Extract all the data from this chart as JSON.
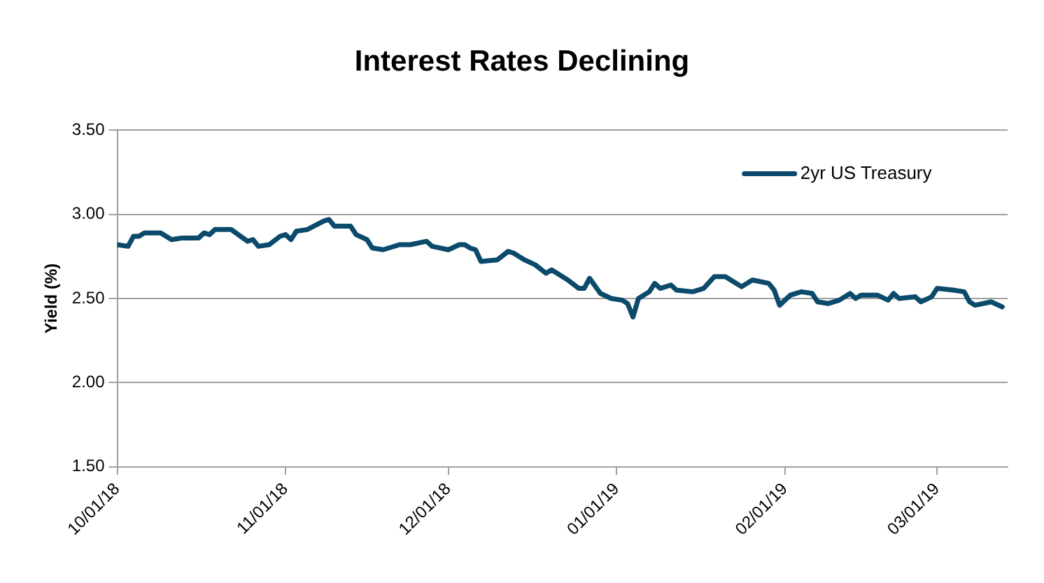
{
  "chart_data": {
    "type": "line",
    "title": "Interest Rates Declining",
    "ylabel": "Yield (%)",
    "x": [
      "2018-10-01",
      "2018-10-03",
      "2018-10-04",
      "2018-10-05",
      "2018-10-06",
      "2018-10-09",
      "2018-10-11",
      "2018-10-13",
      "2018-10-16",
      "2018-10-17",
      "2018-10-18",
      "2018-10-19",
      "2018-10-22",
      "2018-10-25",
      "2018-10-26",
      "2018-10-27",
      "2018-10-29",
      "2018-10-31",
      "2018-11-01",
      "2018-11-02",
      "2018-11-03",
      "2018-11-05",
      "2018-11-08",
      "2018-11-09",
      "2018-11-10",
      "2018-11-13",
      "2018-11-14",
      "2018-11-16",
      "2018-11-17",
      "2018-11-19",
      "2018-11-22",
      "2018-11-24",
      "2018-11-27",
      "2018-11-28",
      "2018-12-01",
      "2018-12-03",
      "2018-12-04",
      "2018-12-05",
      "2018-12-06",
      "2018-12-07",
      "2018-12-10",
      "2018-12-12",
      "2018-12-13",
      "2018-12-15",
      "2018-12-17",
      "2018-12-19",
      "2018-12-20",
      "2018-12-23",
      "2018-12-25",
      "2018-12-26",
      "2018-12-27",
      "2018-12-29",
      "2018-12-31",
      "2019-01-02",
      "2019-01-03",
      "2019-01-04",
      "2019-01-05",
      "2019-01-07",
      "2019-01-08",
      "2019-01-09",
      "2019-01-11",
      "2019-01-12",
      "2019-01-15",
      "2019-01-17",
      "2019-01-19",
      "2019-01-21",
      "2019-01-23",
      "2019-01-24",
      "2019-01-26",
      "2019-01-29",
      "2019-01-30",
      "2019-01-31",
      "2019-02-02",
      "2019-02-04",
      "2019-02-06",
      "2019-02-07",
      "2019-02-09",
      "2019-02-11",
      "2019-02-13",
      "2019-02-14",
      "2019-02-15",
      "2019-02-18",
      "2019-02-20",
      "2019-02-21",
      "2019-02-22",
      "2019-02-25",
      "2019-02-26",
      "2019-02-28",
      "2019-03-01",
      "2019-03-04",
      "2019-03-06",
      "2019-03-07",
      "2019-03-08",
      "2019-03-11",
      "2019-03-13"
    ],
    "series": [
      {
        "name": "2yr US Treasury",
        "color": "#0b4a6b",
        "values": [
          2.82,
          2.81,
          2.87,
          2.87,
          2.89,
          2.89,
          2.85,
          2.86,
          2.86,
          2.89,
          2.88,
          2.91,
          2.91,
          2.84,
          2.85,
          2.81,
          2.82,
          2.87,
          2.88,
          2.85,
          2.9,
          2.91,
          2.96,
          2.97,
          2.93,
          2.93,
          2.88,
          2.85,
          2.8,
          2.79,
          2.82,
          2.82,
          2.84,
          2.81,
          2.79,
          2.82,
          2.82,
          2.8,
          2.79,
          2.72,
          2.73,
          2.78,
          2.77,
          2.73,
          2.7,
          2.65,
          2.67,
          2.61,
          2.56,
          2.56,
          2.62,
          2.53,
          2.5,
          2.49,
          2.47,
          2.39,
          2.5,
          2.54,
          2.59,
          2.56,
          2.58,
          2.55,
          2.54,
          2.56,
          2.63,
          2.63,
          2.59,
          2.57,
          2.61,
          2.59,
          2.55,
          2.46,
          2.52,
          2.54,
          2.53,
          2.48,
          2.47,
          2.49,
          2.53,
          2.5,
          2.52,
          2.52,
          2.49,
          2.53,
          2.5,
          2.51,
          2.48,
          2.51,
          2.56,
          2.55,
          2.54,
          2.48,
          2.46,
          2.48,
          2.45
        ]
      }
    ],
    "xlim": [
      "2018-10-01",
      "2019-03-14"
    ],
    "xticks": [
      {
        "value": "2018-10-01",
        "label": "10/01/18"
      },
      {
        "value": "2018-11-01",
        "label": "11/01/18"
      },
      {
        "value": "2018-12-01",
        "label": "12/01/18"
      },
      {
        "value": "2019-01-01",
        "label": "01/01/19"
      },
      {
        "value": "2019-02-01",
        "label": "02/01/19"
      },
      {
        "value": "2019-03-01",
        "label": "03/01/19"
      }
    ],
    "ylim": [
      1.5,
      3.5
    ],
    "yticks": [
      {
        "value": 1.5,
        "label": "1.50"
      },
      {
        "value": 2,
        "label": "2.00"
      },
      {
        "value": 2.5,
        "label": "2.50"
      },
      {
        "value": 3,
        "label": "3.00"
      },
      {
        "value": 3.5,
        "label": "3.50"
      }
    ],
    "grid": "y",
    "legend": "top right",
    "marker": "none",
    "line_style": "solid"
  }
}
